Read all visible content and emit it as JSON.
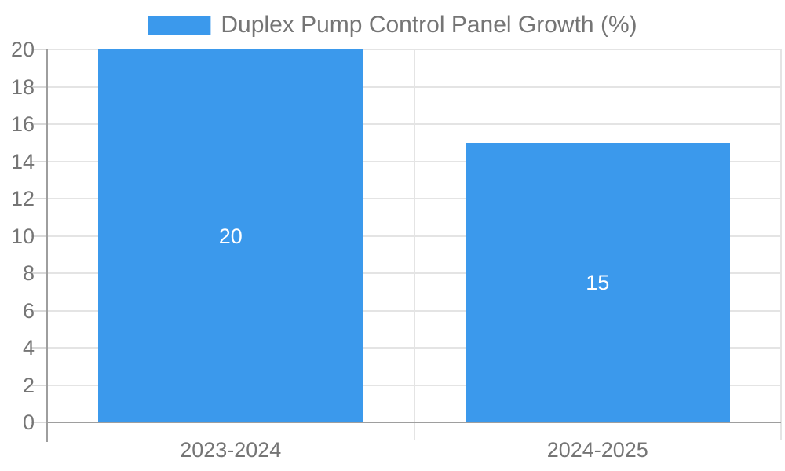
{
  "chart_data": {
    "type": "bar",
    "title": "Duplex Pump Control Panel Growth (%)",
    "legend_position": "top-center",
    "categories": [
      "2023-2024",
      "2024-2025"
    ],
    "series": [
      {
        "name": "Duplex Pump Control Panel Growth (%)",
        "values": [
          20,
          15
        ],
        "color": "#3B99EC"
      }
    ],
    "data_labels": [
      "20",
      "15"
    ],
    "yticks": [
      "0",
      "2",
      "4",
      "6",
      "8",
      "10",
      "12",
      "14",
      "16",
      "18",
      "20"
    ],
    "ylim": [
      0,
      20
    ],
    "ytick_step": 2,
    "grid": true,
    "colors": {
      "bar": "#3B99EC",
      "axis_text": "#757575",
      "grid_line": "#E4E4E4",
      "tick_line": "#D9D9D9",
      "axis_line": "#9E9E9E",
      "bar_label": "#FFFFFF",
      "background": "#FFFFFF"
    }
  }
}
